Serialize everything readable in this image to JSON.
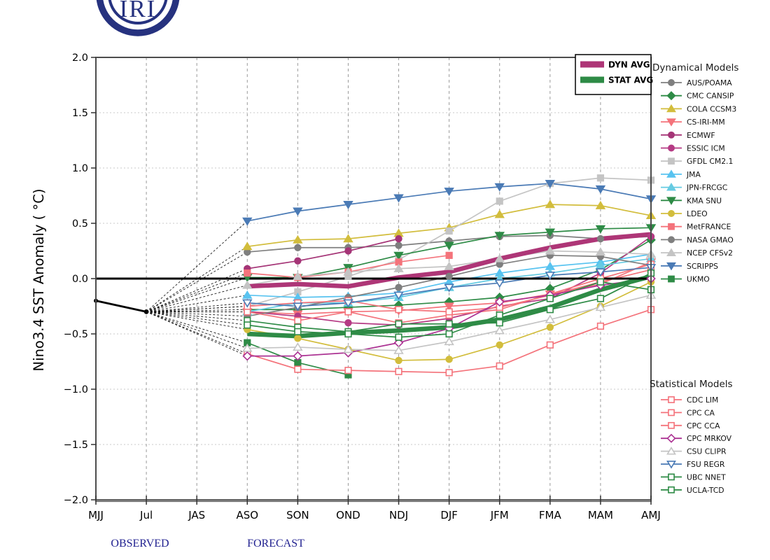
{
  "logo": {
    "text": "IRI",
    "color": "#26327f"
  },
  "axes": {
    "y_label": "Nino3.4 SST Anomaly ( °C)",
    "y_ticks": [
      2.0,
      1.5,
      1.0,
      0.5,
      0.0,
      -0.5,
      -1.0,
      -1.5,
      -2.0
    ],
    "y_tick_labels": [
      "2.0",
      "1.5",
      "1.0",
      "0.5",
      "0.0",
      "−0.5",
      "−1.0",
      "−1.5",
      "−2.0"
    ],
    "x_tick_labels": [
      "MJJ",
      "Jul",
      "JAS",
      "ASO",
      "SON",
      "OND",
      "NDJ",
      "DJF",
      "JFM",
      "FMA",
      "MAM",
      "AMJ"
    ],
    "ylim": [
      -2.0,
      2.0
    ]
  },
  "annotations": {
    "observed_label": "OBSERVED",
    "forecast_label": "FORECAST",
    "label_color": "#1f1f8f"
  },
  "avg_legend": [
    {
      "label": "DYN AVG",
      "color": "#ae3677"
    },
    {
      "label": "STAT AVG",
      "color": "#2e8b46"
    }
  ],
  "chart_data": {
    "type": "line",
    "title": "",
    "x_categories": [
      "MJJ",
      "Jul",
      "JAS",
      "ASO",
      "SON",
      "OND",
      "NDJ",
      "DJF",
      "JFM",
      "FMA",
      "MAM",
      "AMJ"
    ],
    "forecast_start_index": 3,
    "observed": {
      "categories": [
        "MJJ",
        "Jul"
      ],
      "values": [
        -0.2,
        -0.3
      ],
      "color": "#000000"
    },
    "dynamical": {
      "heading": "Dynamical Models",
      "series": [
        {
          "name": "AUS/POAMA",
          "color": "#7f7f7f",
          "marker": "circle",
          "open": false,
          "values": [
            0.24,
            0.28,
            0.28,
            0.3,
            0.34,
            0.38,
            0.39,
            0.36,
            0.38
          ]
        },
        {
          "name": "CMC CANSIP",
          "color": "#2e8b46",
          "marker": "diamond",
          "open": false,
          "values": [
            -0.28,
            -0.28,
            -0.26,
            -0.24,
            -0.21,
            -0.17,
            -0.09,
            0.08,
            0.35
          ]
        },
        {
          "name": "COLA CCSM3",
          "color": "#d2bd3c",
          "marker": "triangle-up",
          "open": false,
          "values": [
            0.29,
            0.35,
            0.36,
            0.41,
            0.46,
            0.58,
            0.67,
            0.66,
            0.57
          ]
        },
        {
          "name": "CS-IRI-MM",
          "color": "#f4737b",
          "marker": "triangle-down",
          "open": false,
          "values": [
            -0.3,
            -0.32,
            -0.3,
            -0.29,
            -0.25,
            -0.22,
            -0.14,
            -0.05,
            0.15
          ]
        },
        {
          "name": "ECMWF",
          "color": "#a53577",
          "marker": "circle",
          "open": false,
          "values": [
            0.09,
            0.16,
            0.25,
            0.36
          ]
        },
        {
          "name": "ESSIC ICM",
          "color": "#b53a84",
          "marker": "circle",
          "open": false,
          "values": [
            -0.3,
            -0.34,
            -0.4,
            -0.42,
            -0.36,
            -0.25,
            -0.18,
            0.05,
            0.38
          ]
        },
        {
          "name": "GFDL CM2.1",
          "color": "#c4c4c4",
          "marker": "square",
          "open": false,
          "values": [
            -0.25,
            -0.12,
            0.02,
            0.17,
            0.43,
            0.7,
            0.86,
            0.91,
            0.89
          ]
        },
        {
          "name": "JMA",
          "color": "#58c3f0",
          "marker": "triangle-up",
          "open": false,
          "values": [
            -0.15,
            -0.17,
            -0.16,
            -0.13,
            -0.03,
            0.05,
            0.11,
            0.15,
            0.22
          ]
        },
        {
          "name": "JPN-FRCGC",
          "color": "#66cbe2",
          "marker": "triangle-up",
          "open": false,
          "values": [
            -0.3,
            -0.22,
            -0.22,
            -0.17,
            -0.08,
            0.0,
            0.05,
            0.12,
            0.18
          ]
        },
        {
          "name": "KMA SNU",
          "color": "#2e8b46",
          "marker": "triangle-down",
          "open": false,
          "values": [
            0.01,
            0.01,
            0.1,
            0.21,
            0.3,
            0.39,
            0.42,
            0.45,
            0.46
          ]
        },
        {
          "name": "LDEO",
          "color": "#d2bd3c",
          "marker": "circle",
          "open": false,
          "values": [
            -0.46,
            -0.54,
            -0.64,
            -0.74,
            -0.73,
            -0.6,
            -0.44,
            -0.25,
            -0.03
          ]
        },
        {
          "name": "MetFRANCE",
          "color": "#f4737b",
          "marker": "square",
          "open": false,
          "values": [
            0.05,
            0.01,
            0.06,
            0.15,
            0.21
          ]
        },
        {
          "name": "NASA GMAO",
          "color": "#7f7f7f",
          "marker": "circle",
          "open": false,
          "values": [
            -0.34,
            -0.26,
            -0.17,
            -0.08,
            0.02,
            0.13,
            0.21,
            0.2,
            0.12
          ]
        },
        {
          "name": "NCEP CFSv2",
          "color": "#c4c4c4",
          "marker": "triangle-up",
          "open": false,
          "values": [
            -0.06,
            0.02,
            0.06,
            0.09,
            0.11,
            0.18,
            0.25,
            0.24,
            0.22
          ]
        },
        {
          "name": "SCRIPPS",
          "color": "#4a7ab5",
          "marker": "triangle-down",
          "open": false,
          "values": [
            0.52,
            0.61,
            0.67,
            0.73,
            0.79,
            0.83,
            0.86,
            0.81,
            0.72
          ]
        },
        {
          "name": "UKMO",
          "color": "#2e8b46",
          "marker": "square",
          "open": false,
          "values": [
            -0.58,
            -0.76,
            -0.87
          ]
        }
      ]
    },
    "statistical": {
      "heading": "Statistical Models",
      "series": [
        {
          "name": "CDC LIM",
          "color": "#f4737b",
          "marker": "square",
          "open": true,
          "values": [
            -0.68,
            -0.82,
            -0.83,
            -0.84,
            -0.85,
            -0.79,
            -0.6,
            -0.43,
            -0.28
          ]
        },
        {
          "name": "CPC CA",
          "color": "#f4737b",
          "marker": "square",
          "open": true,
          "values": [
            -0.3,
            -0.38,
            -0.3,
            -0.4,
            -0.33,
            -0.28,
            -0.14,
            0.0,
            0.13
          ]
        },
        {
          "name": "CPC CCA",
          "color": "#f4737b",
          "marker": "square",
          "open": true,
          "values": [
            -0.25,
            -0.22,
            -0.2,
            -0.28,
            -0.3,
            -0.26,
            -0.15,
            -0.03,
            0.08
          ]
        },
        {
          "name": "CPC MRKOV",
          "color": "#ab3192",
          "marker": "diamond",
          "open": true,
          "values": [
            -0.7,
            -0.7,
            -0.67,
            -0.58,
            -0.45,
            -0.21,
            -0.15,
            -0.06,
            0.0
          ]
        },
        {
          "name": "CSU CLIPR",
          "color": "#c4c4c4",
          "marker": "triangle-up",
          "open": true,
          "values": [
            -0.63,
            -0.62,
            -0.64,
            -0.65,
            -0.57,
            -0.47,
            -0.37,
            -0.26,
            -0.15
          ]
        },
        {
          "name": "FSU REGR",
          "color": "#4a7ab5",
          "marker": "triangle-down",
          "open": true,
          "values": [
            -0.22,
            -0.25,
            -0.22,
            -0.15,
            -0.08,
            -0.04,
            0.03,
            0.06,
            0.1
          ]
        },
        {
          "name": "UBC NNET",
          "color": "#2e8b46",
          "marker": "square",
          "open": true,
          "values": [
            -0.38,
            -0.44,
            -0.48,
            -0.41,
            -0.41,
            -0.4,
            -0.28,
            -0.18,
            0.05
          ]
        },
        {
          "name": "UCLA-TCD",
          "color": "#2e8b46",
          "marker": "square",
          "open": true,
          "values": [
            -0.42,
            -0.48,
            -0.5,
            -0.53,
            -0.5,
            -0.33,
            -0.18,
            -0.03,
            -0.1
          ]
        }
      ]
    },
    "averages": [
      {
        "name": "DYN AVG",
        "color": "#ae3677",
        "values": [
          -0.07,
          -0.05,
          -0.07,
          0.01,
          0.06,
          0.18,
          0.28,
          0.36,
          0.4
        ]
      },
      {
        "name": "STAT AVG",
        "color": "#2e8b46",
        "values": [
          -0.5,
          -0.52,
          -0.49,
          -0.47,
          -0.44,
          -0.37,
          -0.26,
          -0.1,
          0.02
        ]
      }
    ]
  }
}
